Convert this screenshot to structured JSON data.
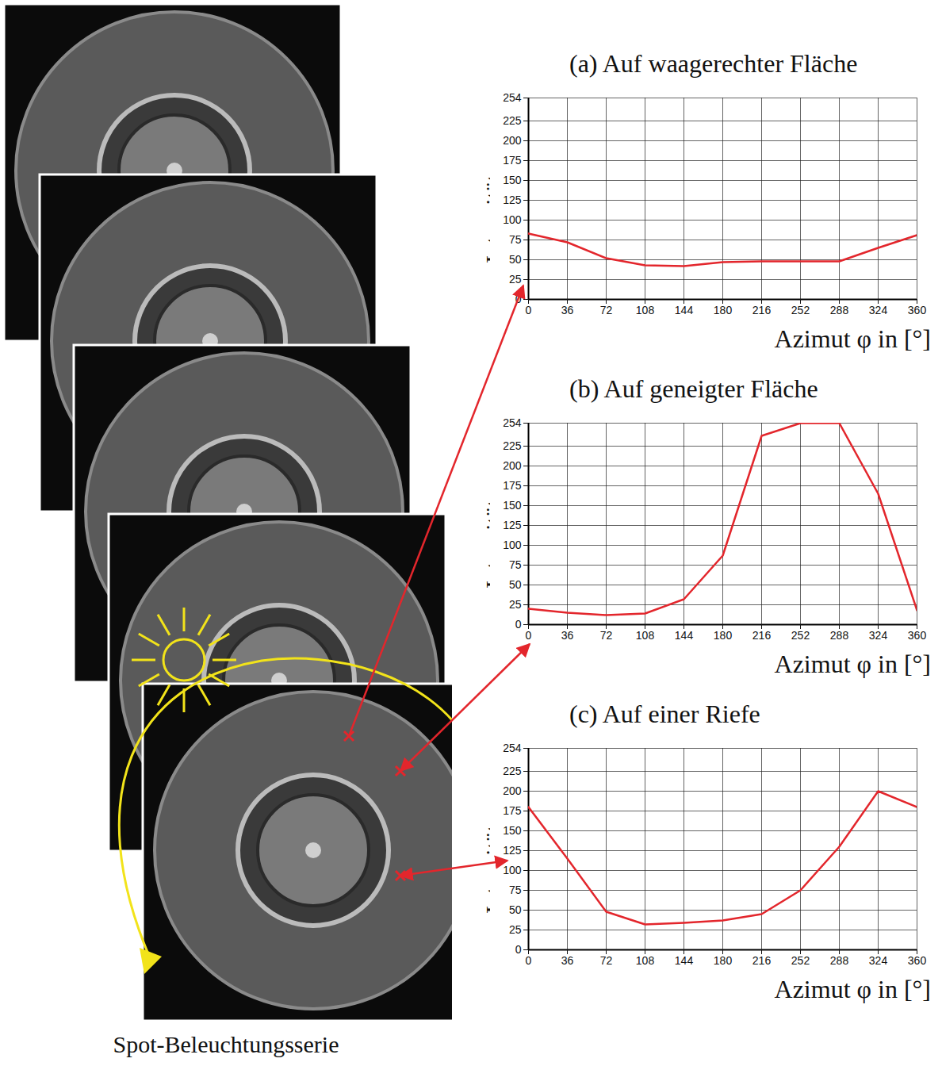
{
  "chart_data": [
    {
      "type": "line",
      "title": "(a) Auf waagerechter Fläche",
      "x_label": "Azimut φ in [°]",
      "y_label": "Intensität",
      "x": [
        0,
        36,
        72,
        108,
        144,
        180,
        216,
        252,
        288,
        324,
        360
      ],
      "values": [
        83,
        72,
        52,
        43,
        42,
        47,
        48,
        48,
        48,
        65,
        81
      ],
      "color": "#e3262c",
      "xlim": [
        0,
        360
      ],
      "ylim": [
        0,
        254
      ],
      "xticks": [
        0,
        36,
        72,
        108,
        144,
        180,
        216,
        252,
        288,
        324,
        360
      ],
      "yticks": [
        0,
        25,
        50,
        75,
        100,
        125,
        150,
        175,
        200,
        225,
        254
      ],
      "grid": true
    },
    {
      "type": "line",
      "title": "(b) Auf geneigter Fläche",
      "x_label": "Azimut φ in [°]",
      "y_label": "Intensität",
      "x": [
        0,
        36,
        72,
        108,
        144,
        180,
        216,
        252,
        288,
        324,
        360
      ],
      "values": [
        20,
        15,
        12,
        14,
        32,
        87,
        238,
        254,
        254,
        165,
        18
      ],
      "color": "#e3262c",
      "xlim": [
        0,
        360
      ],
      "ylim": [
        0,
        254
      ],
      "xticks": [
        0,
        36,
        72,
        108,
        144,
        180,
        216,
        252,
        288,
        324,
        360
      ],
      "yticks": [
        0,
        25,
        50,
        75,
        100,
        125,
        150,
        175,
        200,
        225,
        254
      ],
      "grid": true
    },
    {
      "type": "line",
      "title": "(c) Auf einer Riefe",
      "x_label": "Azimut φ in [°]",
      "y_label": "Intensität",
      "x": [
        0,
        36,
        72,
        108,
        144,
        180,
        216,
        252,
        288,
        324,
        360
      ],
      "values": [
        180,
        115,
        48,
        32,
        34,
        37,
        45,
        75,
        130,
        200,
        180
      ],
      "color": "#e3262c",
      "xlim": [
        0,
        360
      ],
      "ylim": [
        0,
        254
      ],
      "xticks": [
        0,
        36,
        72,
        108,
        144,
        180,
        216,
        252,
        288,
        324,
        360
      ],
      "yticks": [
        0,
        25,
        50,
        75,
        100,
        125,
        150,
        175,
        200,
        225,
        254
      ],
      "grid": true
    }
  ],
  "caption": "Spot-Beleuchtungsserie"
}
